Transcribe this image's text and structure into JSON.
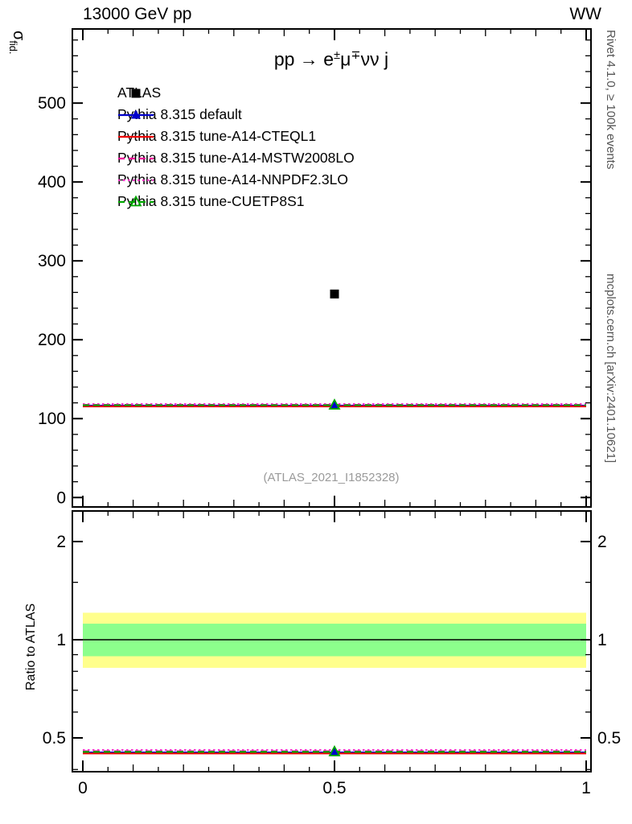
{
  "header": {
    "left": "13000 GeV pp",
    "right": "WW"
  },
  "title_segments": [
    {
      "t": "pp → e"
    },
    {
      "t": "±",
      "sup": true
    },
    {
      "t": "μ"
    },
    {
      "t": "∓",
      "sup": true
    },
    {
      "t": "νν j"
    }
  ],
  "ylabel_main_segments": [
    {
      "t": "σ"
    },
    {
      "t": "fid.",
      "sub": true
    }
  ],
  "side": {
    "rivet": "Rivet 4.1.0, ≥ 100k events",
    "mcplots": "mcplots.cern.ch [arXiv:2401.10621]"
  },
  "watermark": "(ATLAS_2021_I1852328)",
  "chart_data": {
    "type": "line",
    "title": "pp → e±μ∓νν j",
    "xlim": [
      0,
      1
    ],
    "x_ticks": [
      0,
      0.5,
      1
    ],
    "main_panel": {
      "ylabel": "σ_fid.",
      "ylim": [
        -13,
        595
      ],
      "y_ticks": [
        0,
        100,
        200,
        300,
        400,
        500
      ],
      "atlas": {
        "label": "ATLAS",
        "color": "#000000",
        "marker": "square-filled",
        "x": 0.5,
        "value": 258
      },
      "series": [
        {
          "label": "Pythia 8.315 default",
          "color": "#0000cc",
          "line": "solid",
          "marker": "triangle-filled",
          "value": 116.5,
          "ratio": 0.451
        },
        {
          "label": "Pythia 8.315 tune-A14-CTEQL1",
          "color": "#ee0000",
          "line": "solid",
          "marker": "none",
          "value": 115.5,
          "ratio": 0.448
        },
        {
          "label": "Pythia 8.315 tune-A14-MSTW2008LO",
          "color": "#ee0099",
          "line": "dashed",
          "marker": "none",
          "value": 117.5,
          "ratio": 0.455
        },
        {
          "label": "Pythia 8.315 tune-A14-NNPDF2.3LO",
          "color": "#ff33cc",
          "line": "dotted",
          "marker": "none",
          "value": 118.5,
          "ratio": 0.459
        },
        {
          "label": "Pythia 8.315 tune-CUETP8S1",
          "color": "#00aa00",
          "line": "dashed",
          "marker": "triangle-open",
          "value": 117.0,
          "ratio": 0.453
        }
      ]
    },
    "ratio_panel": {
      "ylabel": "Ratio to ATLAS",
      "scale": "log2",
      "ylim": [
        0.39,
        2.5
      ],
      "y_ticks": [
        0.5,
        1,
        2
      ],
      "unity": 1,
      "bands": [
        {
          "color": "#ffff8c",
          "lo": 0.82,
          "hi": 1.21
        },
        {
          "color": "#8cff8c",
          "lo": 0.89,
          "hi": 1.12
        }
      ]
    }
  }
}
